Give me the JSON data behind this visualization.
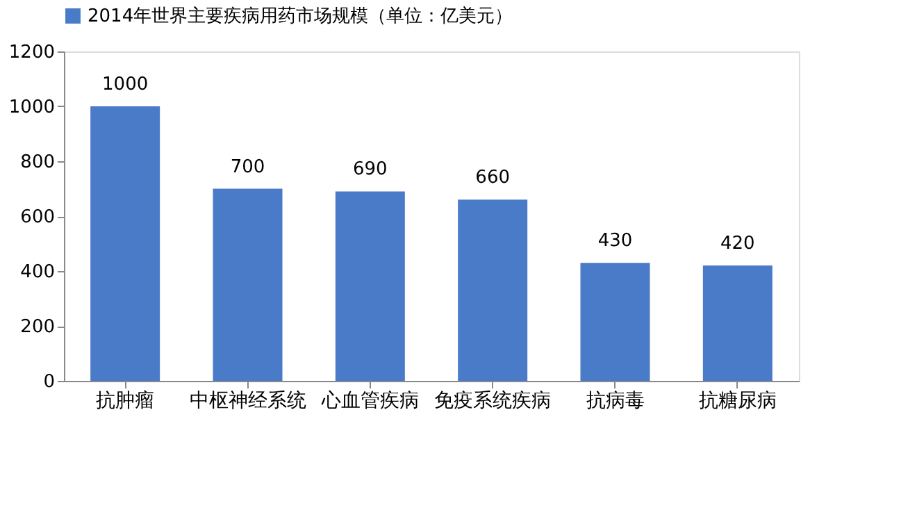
{
  "chart_data": {
    "type": "bar",
    "categories": [
      "抗肿瘤",
      "中枢神经系统",
      "心血管疾病",
      "免疫系统疾病",
      "抗病毒",
      "抗糖尿病"
    ],
    "series": [
      {
        "name": "2014年世界主要疾病用药市场规模（单位：亿美元）",
        "color": "#4a7bc8",
        "values": [
          1000,
          700,
          690,
          660,
          430,
          420
        ]
      }
    ],
    "ylim": [
      0,
      1200
    ],
    "yticks": [
      0,
      200,
      400,
      600,
      800,
      1000,
      1200
    ],
    "data_labels": true,
    "legend": "top",
    "grid": false
  }
}
